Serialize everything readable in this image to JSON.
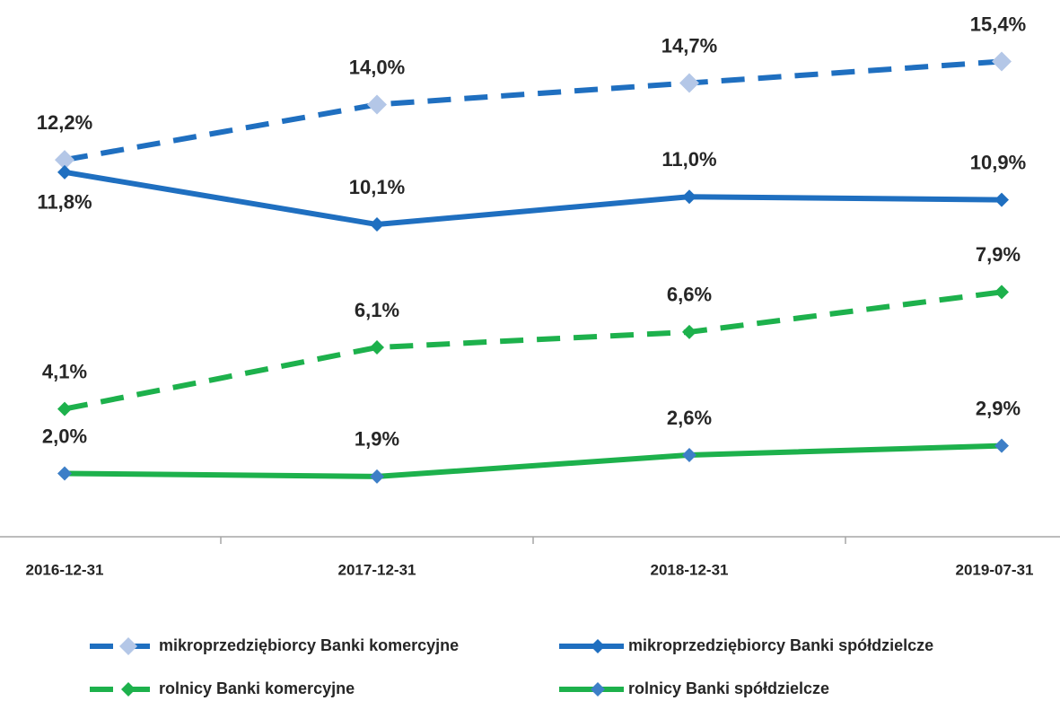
{
  "chart_data": {
    "type": "line",
    "categories": [
      "2016-12-31",
      "2017-12-31",
      "2018-12-31",
      "2019-07-31"
    ],
    "ylim": [
      0,
      17.4
    ],
    "series": [
      {
        "name": "mikroprzedziębiorcy Banki komercyjne",
        "color": "#1f6fc0",
        "marker_color": "#b4c7e7",
        "dashed": true,
        "values": [
          12.2,
          14.0,
          14.7,
          15.4
        ],
        "value_labels": [
          "12,2%",
          "14,0%",
          "14,7%",
          "15,4%"
        ]
      },
      {
        "name": "mikroprzedziębiorcy Banki spółdzielcze",
        "color": "#1f6fc0",
        "marker_color": "#1f6fc0",
        "dashed": false,
        "values": [
          11.8,
          10.1,
          11.0,
          10.9
        ],
        "value_labels": [
          "11,8%",
          "10,1%",
          "11,0%",
          "10,9%"
        ]
      },
      {
        "name": "rolnicy Banki komercyjne",
        "color": "#1db14c",
        "marker_color": "#1db14c",
        "dashed": true,
        "values": [
          4.1,
          6.1,
          6.6,
          7.9
        ],
        "value_labels": [
          "4,1%",
          "6,1%",
          "6,6%",
          "7,9%"
        ]
      },
      {
        "name": "rolnicy Banki spółdzielcze",
        "color": "#1db14c",
        "marker_color": "#3d7fc7",
        "dashed": false,
        "values": [
          2.0,
          1.9,
          2.6,
          2.9
        ],
        "value_labels": [
          "2,0%",
          "1,9%",
          "2,6%",
          "2,9%"
        ]
      }
    ]
  }
}
